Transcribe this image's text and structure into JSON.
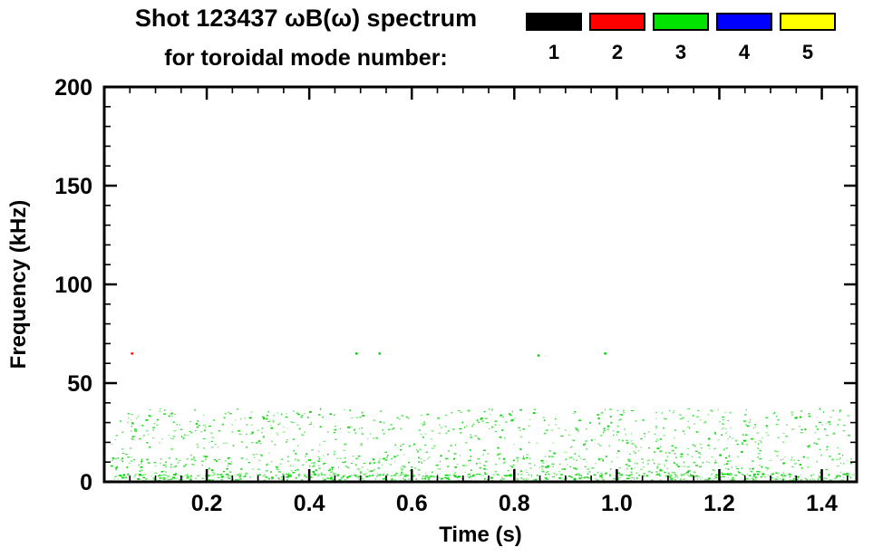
{
  "header": {
    "title_line1": "Shot 123437 ωB(ω) spectrum",
    "title_line2": "for toroidal mode number:"
  },
  "legend": {
    "items": [
      {
        "label": "1",
        "color": "#000000"
      },
      {
        "label": "2",
        "color": "#ff0000"
      },
      {
        "label": "3",
        "color": "#00e400"
      },
      {
        "label": "4",
        "color": "#0000ff"
      },
      {
        "label": "5",
        "color": "#ffff00"
      }
    ]
  },
  "chart_data": {
    "type": "scatter",
    "title": "Shot 123437 ωB(ω) spectrum for toroidal mode number",
    "xlabel": "Time (s)",
    "ylabel": "Frequency (kHz)",
    "xlim": [
      0,
      1.468
    ],
    "ylim": [
      0,
      200
    ],
    "grid": false,
    "legend_position": "top-right",
    "xticks": [
      {
        "v": 0.2,
        "label": "0.2"
      },
      {
        "v": 0.4,
        "label": "0.4"
      },
      {
        "v": 0.6,
        "label": "0.6"
      },
      {
        "v": 0.8,
        "label": "0.8"
      },
      {
        "v": 1.0,
        "label": "1.0"
      },
      {
        "v": 1.2,
        "label": "1.2"
      },
      {
        "v": 1.4,
        "label": "1.4"
      }
    ],
    "yticks": [
      {
        "v": 0,
        "label": "0"
      },
      {
        "v": 50,
        "label": "50"
      },
      {
        "v": 100,
        "label": "100"
      },
      {
        "v": 150,
        "label": "150"
      },
      {
        "v": 200,
        "label": "200"
      }
    ],
    "minor_tick_step": {
      "x": 0.05,
      "y": 10
    },
    "seed": 1234567,
    "series": [
      {
        "name": "toroidal mode n=3",
        "color": "#00d000",
        "noise_bands": [
          {
            "x": [
              0.01,
              1.46
            ],
            "y": [
              0,
              4
            ],
            "count": 620
          },
          {
            "x": [
              0.01,
              1.46
            ],
            "y": [
              3,
              13
            ],
            "count": 520
          },
          {
            "x": [
              0.01,
              1.46
            ],
            "y": [
              13,
              24
            ],
            "count": 260
          },
          {
            "x": [
              0.01,
              1.46
            ],
            "y": [
              24,
              37
            ],
            "count": 400
          }
        ],
        "outliers": [
          [
            0.49,
            65
          ],
          [
            0.535,
            65
          ],
          [
            0.845,
            64
          ],
          [
            0.975,
            65
          ]
        ]
      },
      {
        "name": "toroidal mode n=2",
        "color": "#ff0000",
        "noise_bands": [],
        "outliers": [
          [
            0.052,
            65
          ]
        ]
      }
    ]
  }
}
